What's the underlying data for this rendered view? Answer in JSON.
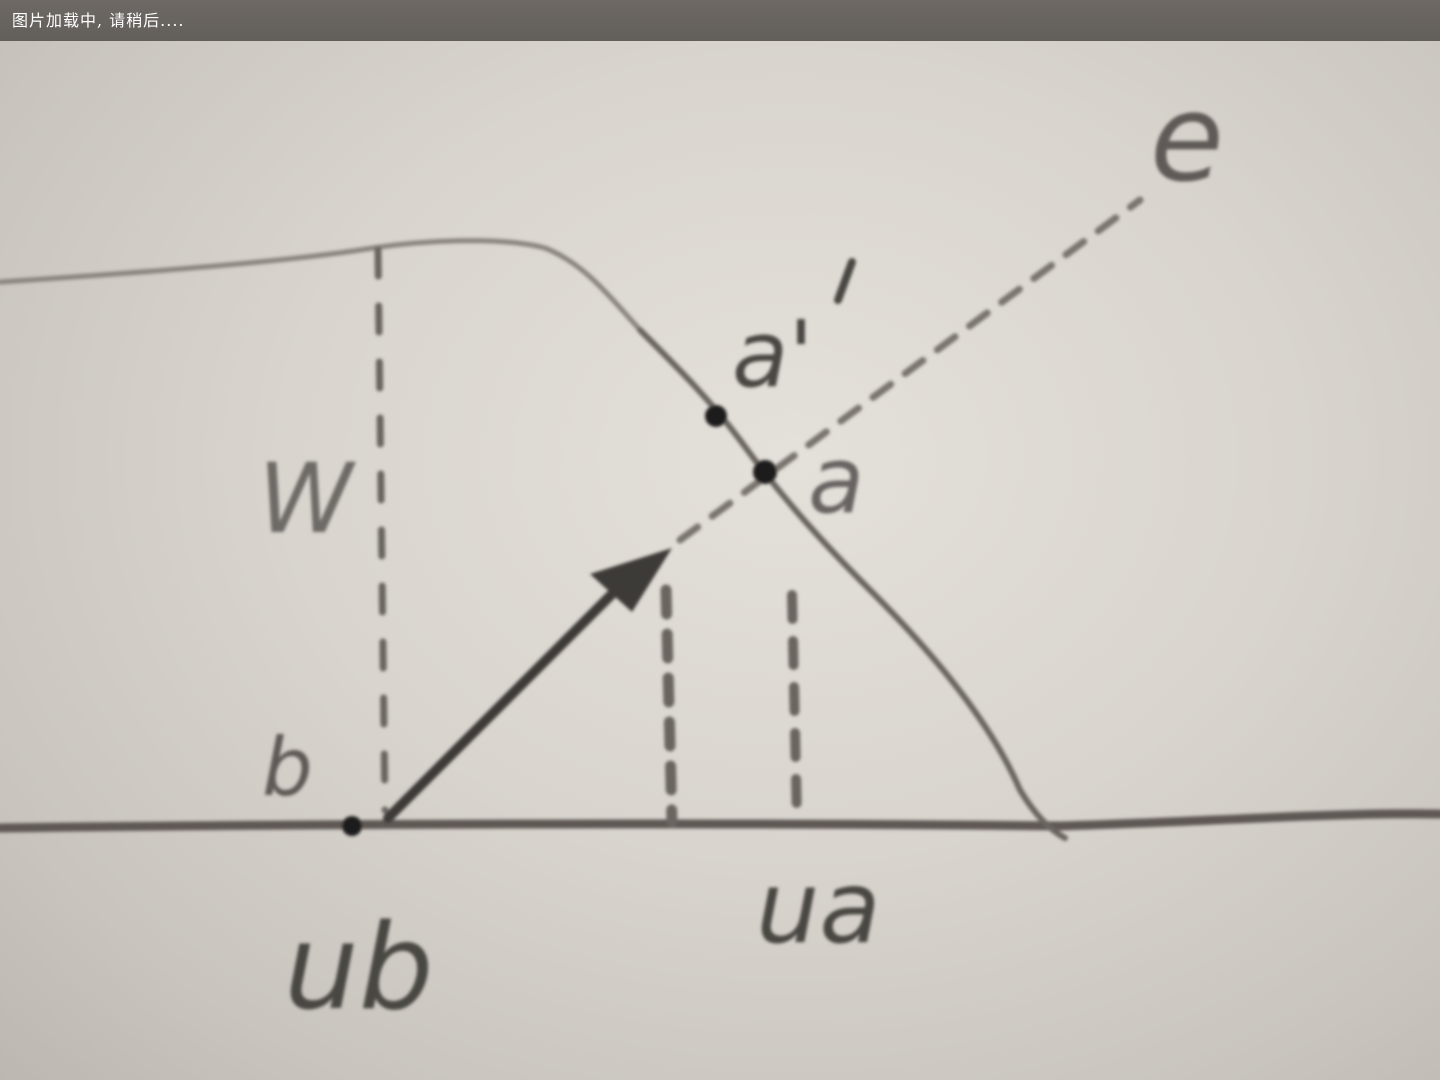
{
  "status_bar": {
    "loading_text": "图片加载中, 请稍后...."
  },
  "diagram": {
    "labels": {
      "a_prime": "a'",
      "a": "a",
      "e": "e",
      "w": "W",
      "b": "b",
      "ub": "ub",
      "ua": "ua"
    },
    "colors": {
      "paper": "#d6d1cb",
      "ink": "#3d3a37",
      "pencil": "#6a6560"
    }
  }
}
